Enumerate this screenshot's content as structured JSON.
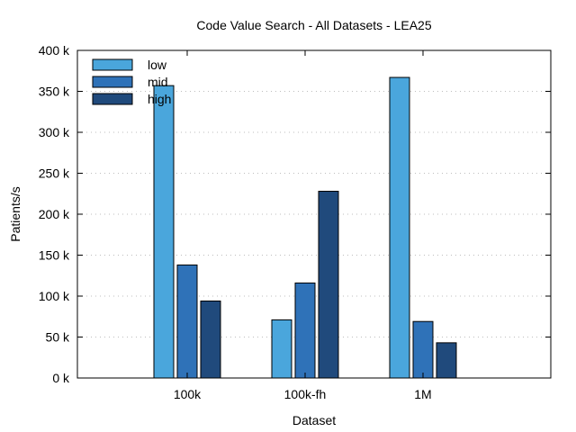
{
  "chart_data": {
    "type": "bar",
    "title": "Code Value Search - All Datasets - LEA25",
    "xlabel": "Dataset",
    "ylabel": "Patients/s",
    "categories": [
      "100k",
      "100k-fh",
      "1M"
    ],
    "series": [
      {
        "name": "low",
        "color": "#4aa6dc",
        "values": [
          357000,
          71000,
          367000
        ]
      },
      {
        "name": "mid",
        "color": "#2f72b8",
        "values": [
          138000,
          116000,
          69000
        ]
      },
      {
        "name": "high",
        "color": "#204a7c",
        "values": [
          94000,
          228000,
          43000
        ]
      }
    ],
    "ylim": [
      0,
      400000
    ],
    "yticks": [
      {
        "value": 0,
        "label": "0 k"
      },
      {
        "value": 50000,
        "label": "50 k"
      },
      {
        "value": 100000,
        "label": "100 k"
      },
      {
        "value": 150000,
        "label": "150 k"
      },
      {
        "value": 200000,
        "label": "200 k"
      },
      {
        "value": 250000,
        "label": "250 k"
      },
      {
        "value": 300000,
        "label": "300 k"
      },
      {
        "value": 350000,
        "label": "350 k"
      },
      {
        "value": 400000,
        "label": "400 k"
      }
    ],
    "grid": true,
    "legend_position": "top-left"
  }
}
